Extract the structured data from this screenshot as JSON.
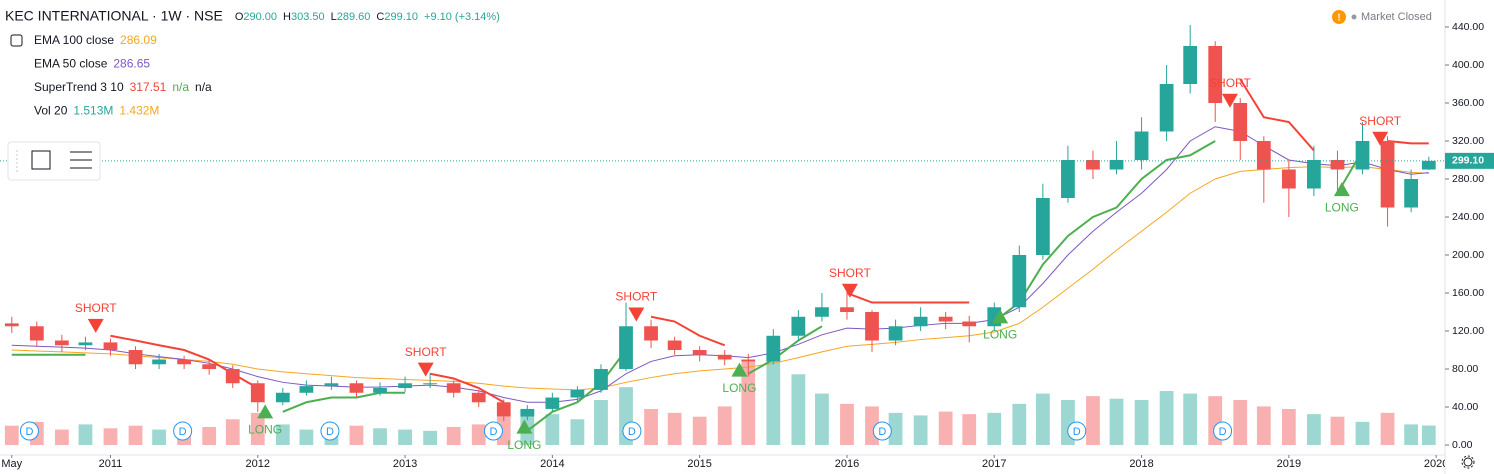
{
  "chart_data": {
    "type": "candlestick",
    "title": "KEC INTERNATIONAL · 1W · NSE",
    "quote": [
      {
        "label": "O",
        "value": "290.00"
      },
      {
        "label": "H",
        "value": "303.50"
      },
      {
        "label": "L",
        "value": "289.60"
      },
      {
        "label": "C",
        "value": "299.10"
      }
    ],
    "change": "+9.10 (+3.14%)",
    "status": "Market Closed",
    "up_color": "#26a69a",
    "down_color": "#ef5350",
    "x": [
      2010.33,
      2010.5,
      2010.67,
      2010.83,
      2011,
      2011.17,
      2011.33,
      2011.5,
      2011.67,
      2011.83,
      2012,
      2012.17,
      2012.33,
      2012.5,
      2012.67,
      2012.83,
      2013,
      2013.17,
      2013.33,
      2013.5,
      2013.67,
      2013.83,
      2014,
      2014.17,
      2014.33,
      2014.5,
      2014.67,
      2014.83,
      2015,
      2015.17,
      2015.33,
      2015.5,
      2015.67,
      2015.83,
      2016,
      2016.17,
      2016.33,
      2016.5,
      2016.67,
      2016.83,
      2017,
      2017.17,
      2017.33,
      2017.5,
      2017.67,
      2017.83,
      2018,
      2018.17,
      2018.33,
      2018.5,
      2018.67,
      2018.83,
      2019,
      2019.17,
      2019.33,
      2019.5,
      2019.67,
      2019.83,
      2019.95
    ],
    "open": [
      128,
      125,
      110,
      105,
      108,
      100,
      85,
      90,
      85,
      80,
      65,
      45,
      55,
      62,
      65,
      55,
      60,
      65,
      65,
      55,
      45,
      30,
      38,
      50,
      58,
      80,
      125,
      110,
      100,
      95,
      90,
      88,
      115,
      135,
      145,
      140,
      110,
      125,
      135,
      130,
      125,
      145,
      200,
      260,
      300,
      290,
      300,
      330,
      380,
      420,
      360,
      320,
      290,
      270,
      300,
      290,
      320,
      250,
      290
    ],
    "high": [
      135,
      130,
      116,
      114,
      112,
      104,
      96,
      94,
      90,
      84,
      68,
      60,
      68,
      72,
      68,
      66,
      72,
      76,
      68,
      58,
      48,
      42,
      55,
      62,
      85,
      150,
      132,
      114,
      104,
      100,
      96,
      122,
      142,
      160,
      165,
      142,
      132,
      145,
      140,
      136,
      150,
      210,
      275,
      315,
      310,
      320,
      345,
      400,
      442,
      425,
      365,
      325,
      300,
      315,
      310,
      340,
      325,
      290,
      303.5
    ],
    "low": [
      118,
      104,
      98,
      100,
      94,
      80,
      80,
      80,
      74,
      60,
      35,
      42,
      52,
      58,
      50,
      52,
      56,
      60,
      50,
      40,
      25,
      26,
      35,
      46,
      55,
      78,
      102,
      95,
      88,
      84,
      72,
      85,
      110,
      130,
      132,
      98,
      105,
      120,
      122,
      108,
      120,
      140,
      195,
      255,
      280,
      285,
      290,
      320,
      370,
      340,
      300,
      255,
      240,
      262,
      265,
      285,
      230,
      245,
      289.6
    ],
    "close": [
      125,
      110,
      105,
      108,
      100,
      85,
      90,
      85,
      80,
      65,
      45,
      55,
      62,
      65,
      55,
      60,
      65,
      65,
      55,
      45,
      30,
      38,
      50,
      58,
      80,
      125,
      110,
      100,
      95,
      90,
      88,
      115,
      135,
      145,
      140,
      110,
      125,
      135,
      130,
      125,
      145,
      200,
      260,
      300,
      290,
      300,
      330,
      380,
      420,
      360,
      320,
      290,
      270,
      300,
      290,
      320,
      250,
      280,
      299.1
    ],
    "series": [
      {
        "name": "EMA 100 close",
        "color": "#f5a623",
        "readouts": [
          {
            "text": "286.09",
            "color": "#f5a623"
          }
        ],
        "values": [
          100,
          99,
          98,
          97,
          96,
          94,
          92,
          90,
          88,
          85,
          80,
          77,
          75,
          73,
          71,
          70,
          69,
          68,
          67,
          65,
          62,
          60,
          59,
          58,
          60,
          66,
          71,
          75,
          78,
          80,
          82,
          86,
          92,
          98,
          104,
          106,
          108,
          111,
          113,
          115,
          119,
          128,
          145,
          165,
          185,
          205,
          225,
          245,
          265,
          280,
          288,
          290,
          292,
          293,
          292,
          293,
          290,
          287,
          286.09
        ]
      },
      {
        "name": "EMA 50 close",
        "color": "#7e57c2",
        "readouts": [
          {
            "text": "286.65",
            "color": "#7e57c2"
          }
        ],
        "values": [
          105,
          104,
          103,
          102,
          100,
          96,
          93,
          90,
          86,
          80,
          72,
          66,
          63,
          62,
          61,
          61,
          62,
          63,
          61,
          57,
          50,
          45,
          45,
          48,
          57,
          75,
          88,
          94,
          95,
          94,
          92,
          97,
          106,
          116,
          123,
          122,
          123,
          126,
          128,
          128,
          132,
          145,
          170,
          200,
          225,
          245,
          265,
          290,
          320,
          335,
          330,
          315,
          300,
          296,
          294,
          298,
          290,
          285,
          286.65
        ]
      },
      {
        "name": "SuperTrend 3 10",
        "color": "#f44336",
        "up_color": "#4caf50",
        "readouts": [
          {
            "text": "317.51",
            "color": "#f44336"
          },
          {
            "text": "n/a",
            "color": "#4caf50"
          },
          {
            "text": "n/a",
            "color": "#131722"
          }
        ],
        "values": [
          null,
          null,
          null,
          null,
          115,
          110,
          105,
          100,
          90,
          75,
          60,
          null,
          null,
          null,
          null,
          null,
          null,
          75,
          70,
          60,
          45,
          null,
          null,
          null,
          null,
          null,
          135,
          130,
          115,
          105,
          null,
          null,
          null,
          null,
          160,
          150,
          150,
          150,
          150,
          150,
          null,
          null,
          null,
          null,
          null,
          null,
          null,
          null,
          null,
          null,
          385,
          345,
          340,
          310,
          null,
          null,
          320,
          317.51,
          317.51
        ],
        "up_values": [
          95,
          95,
          95,
          95,
          null,
          null,
          null,
          null,
          null,
          null,
          null,
          35,
          45,
          50,
          50,
          55,
          55,
          null,
          null,
          null,
          null,
          15,
          35,
          45,
          65,
          100,
          null,
          null,
          null,
          null,
          75,
          90,
          110,
          125,
          null,
          null,
          null,
          null,
          null,
          null,
          130,
          150,
          190,
          220,
          240,
          250,
          280,
          300,
          305,
          320,
          null,
          null,
          null,
          null,
          265,
          310,
          null,
          null,
          null
        ]
      }
    ],
    "volume": {
      "name": "Vol 20",
      "readouts": [
        {
          "text": "1.513M",
          "color": "#26a69a"
        },
        {
          "text": "1.432M",
          "color": "#f5a623"
        }
      ],
      "values": [
        1.5,
        1.8,
        1.2,
        1.6,
        1.3,
        1.5,
        1.2,
        1.0,
        1.4,
        2.0,
        2.5,
        1.6,
        1.2,
        1.0,
        1.5,
        1.3,
        1.2,
        1.1,
        1.4,
        1.6,
        2.2,
        2.8,
        2.4,
        2.0,
        3.5,
        4.5,
        2.8,
        2.5,
        2.2,
        3.0,
        6.5,
        7.0,
        5.5,
        4.0,
        3.2,
        3.0,
        2.5,
        2.3,
        2.6,
        2.4,
        2.5,
        3.2,
        4.0,
        3.5,
        3.8,
        3.6,
        3.5,
        4.2,
        4.0,
        3.8,
        3.5,
        3.0,
        2.8,
        2.4,
        2.2,
        1.8,
        2.5,
        1.6,
        1.513
      ]
    },
    "annotations": [
      {
        "text": "SHORT",
        "x": 2010.9,
        "y": 118
      },
      {
        "text": "LONG",
        "x": 2012.05,
        "y": 28
      },
      {
        "text": "SHORT",
        "x": 2013.14,
        "y": 72
      },
      {
        "text": "LONG",
        "x": 2013.81,
        "y": 12
      },
      {
        "text": "SHORT",
        "x": 2014.57,
        "y": 130
      },
      {
        "text": "LONG",
        "x": 2015.27,
        "y": 72
      },
      {
        "text": "SHORT",
        "x": 2016.02,
        "y": 155
      },
      {
        "text": "LONG",
        "x": 2017.04,
        "y": 128
      },
      {
        "text": "SHORT",
        "x": 2018.6,
        "y": 355
      },
      {
        "text": "LONG",
        "x": 2019.36,
        "y": 262
      },
      {
        "text": "SHORT",
        "x": 2019.62,
        "y": 315
      }
    ],
    "dividends": {
      "label": "D",
      "x": [
        2010.45,
        2011.49,
        2012.49,
        2013.6,
        2014.54,
        2016.24,
        2017.56,
        2018.55
      ]
    },
    "last": {
      "value": 299.1,
      "label": "299.10"
    },
    "xlim": [
      2010.25,
      2020.06
    ],
    "xticks": [
      {
        "value": 2010.33,
        "label": "May"
      },
      2011,
      2012,
      2013,
      2014,
      2015,
      2016,
      2017,
      2018,
      2019,
      2020
    ],
    "ylim": [
      -10.5,
      468.4
    ],
    "yticks": [
      {
        "value": 0,
        "label": "0.00"
      },
      {
        "value": 40,
        "label": "40.00"
      },
      {
        "value": 80,
        "label": "80.00"
      },
      {
        "value": 120,
        "label": "120.00"
      },
      {
        "value": 160,
        "label": "160.00"
      },
      {
        "value": 200,
        "label": "200.00"
      },
      {
        "value": 240,
        "label": "240.00"
      },
      {
        "value": 280,
        "label": "280.00"
      },
      {
        "value": 320,
        "label": "320.00"
      },
      {
        "value": 360,
        "label": "360.00"
      },
      {
        "value": 400,
        "label": "400.00"
      },
      {
        "value": 440,
        "label": "440.00"
      }
    ],
    "grid": false
  }
}
